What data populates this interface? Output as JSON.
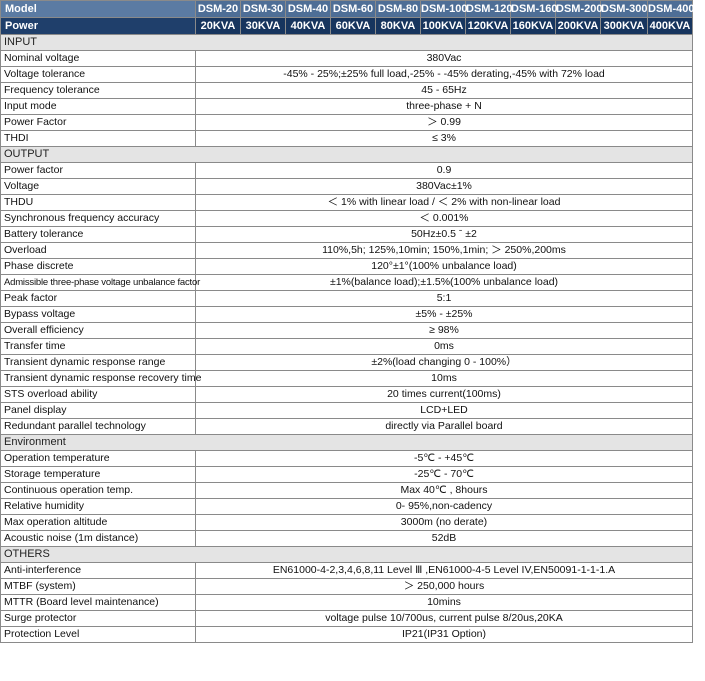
{
  "header": {
    "model_label": "Model",
    "power_label": "Power",
    "models": [
      "DSM-20",
      "DSM-30",
      "DSM-40",
      "DSM-60",
      "DSM-80",
      "DSM-100",
      "DSM-120",
      "DSM-160",
      "DSM-200",
      "DSM-300",
      "DSM-400"
    ],
    "powers": [
      "20KVA",
      "30KVA",
      "40KVA",
      "60KVA",
      "80KVA",
      "100KVA",
      "120KVA",
      "160KVA",
      "200KVA",
      "300KVA",
      "400KVA"
    ]
  },
  "rows": [
    {
      "type": "section",
      "label": "INPUT"
    },
    {
      "label": "Nominal voltage",
      "value": "380Vac"
    },
    {
      "label": "Voltage tolerance",
      "value": "-45% - 25%;±25% full load,-25% - -45% derating,-45% with 72% load"
    },
    {
      "label": "Frequency tolerance",
      "value": "45 - 65Hz"
    },
    {
      "label": "Input mode",
      "value": "three-phase + N"
    },
    {
      "label": "Power Factor",
      "value": "＞ 0.99"
    },
    {
      "label": "THDI",
      "value": "≤  3%"
    },
    {
      "type": "section",
      "label": "OUTPUT"
    },
    {
      "label": "Power factor",
      "value": "0.9"
    },
    {
      "label": "Voltage",
      "value": "380Vac±1%"
    },
    {
      "label": "THDU",
      "value": "＜ 1% with linear load /  ＜ 2% with non-linear load"
    },
    {
      "label": "Synchronous frequency accuracy",
      "value": "＜ 0.001%"
    },
    {
      "label": "Battery tolerance",
      "value": "50Hz±0.5 ˉ ±2"
    },
    {
      "label": "Overload",
      "value": "110%,5h; 125%,10min; 150%,1min; ＞ 250%,200ms"
    },
    {
      "label": "Phase discrete",
      "value": "120°±1°(100% unbalance load)"
    },
    {
      "label": "Admissible three-phase voltage unbalance factor",
      "value": "±1%(balance load);±1.5%(100% unbalance load)",
      "narrow": true
    },
    {
      "label": "Peak factor",
      "value": "5:1"
    },
    {
      "label": "Bypass voltage",
      "value": "±5% - ±25%"
    },
    {
      "label": "Overall efficiency",
      "value": "≥  98%"
    },
    {
      "label": "Transfer time",
      "value": "0ms"
    },
    {
      "label": "Transient dynamic response range",
      "value": "±2%(load changing 0 - 100%）"
    },
    {
      "label": "Transient dynamic response recovery time",
      "value": "10ms"
    },
    {
      "label": "STS overload ability",
      "value": "20 times current(100ms)"
    },
    {
      "label": "Panel display",
      "value": "LCD+LED"
    },
    {
      "label": "Redundant parallel technology",
      "value": "directly  via Parallel board"
    },
    {
      "type": "section",
      "label": "Environment"
    },
    {
      "label": "Operation temperature",
      "value": "-5℃ - +45℃"
    },
    {
      "label": "Storage temperature",
      "value": "-25℃ - 70℃"
    },
    {
      "label": "Continuous operation temp.",
      "value": "Max 40℃ , 8hours"
    },
    {
      "label": "Relative humidity",
      "value": "0- 95%,non-cadency"
    },
    {
      "label": "Max operation altitude",
      "value": "3000m (no derate)"
    },
    {
      "label": "Acoustic noise (1m distance)",
      "value": "52dB"
    },
    {
      "type": "section",
      "label": "OTHERS"
    },
    {
      "label": "Anti-interference",
      "value": "EN61000-4-2,3,4,6,8,11  Level Ⅲ ,EN61000-4-5 Level IV,EN50091-1-1-1.A"
    },
    {
      "label": "MTBF (system)",
      "value": "＞ 250,000 hours"
    },
    {
      "label": "MTTR (Board level maintenance)",
      "value": "10mins"
    },
    {
      "label": "Surge protector",
      "value": "voltage pulse 10/700us,    current pulse 8/20us,20KA"
    },
    {
      "label": "Protection  Level",
      "value": "IP21(IP31 Option)"
    }
  ]
}
